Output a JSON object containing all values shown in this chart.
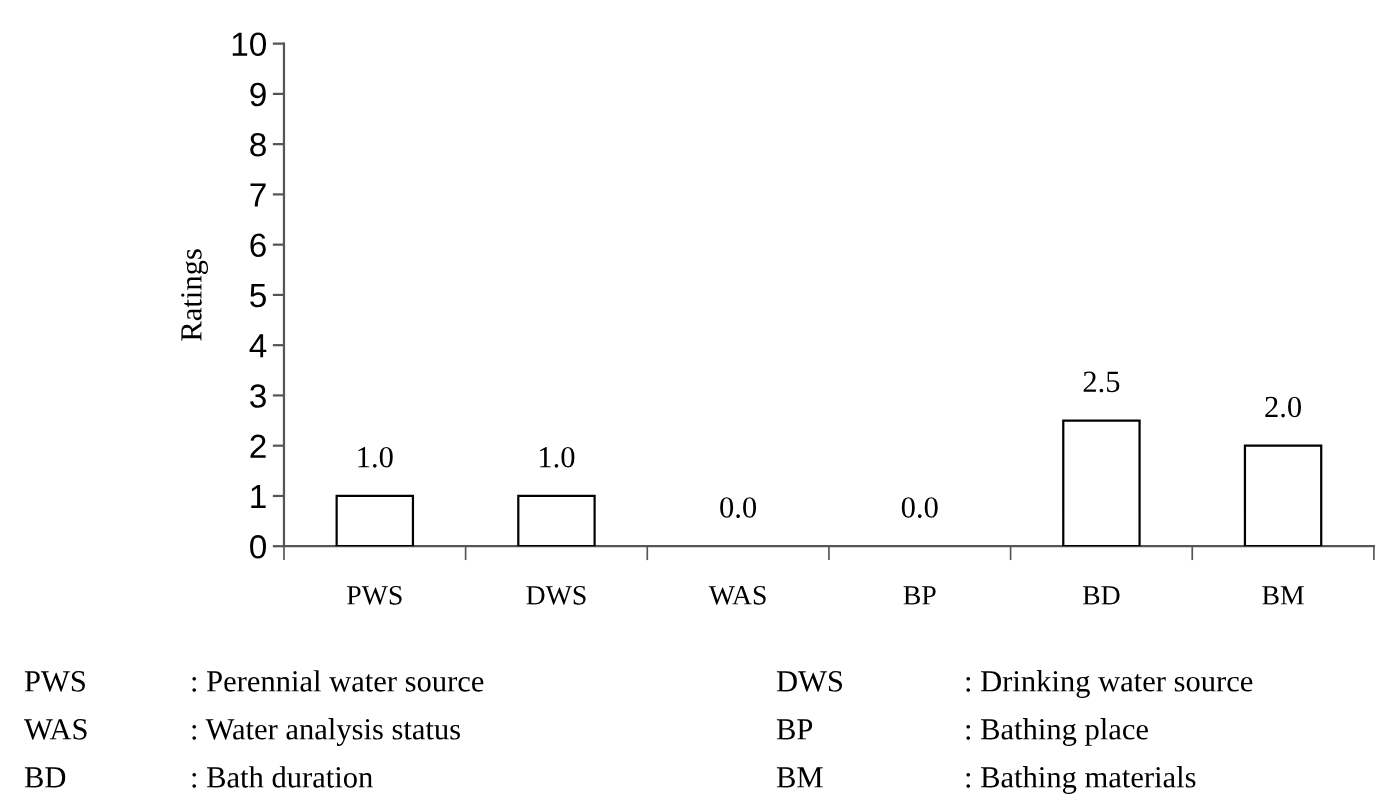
{
  "chart_data": {
    "type": "bar",
    "ylabel": "Ratings",
    "categories": [
      "PWS",
      "DWS",
      "WAS",
      "BP",
      "BD",
      "BM"
    ],
    "values": [
      1.0,
      1.0,
      0.0,
      0.0,
      2.5,
      2.0
    ],
    "value_labels": [
      "1.0",
      "1.0",
      "0.0",
      "0.0",
      "2.5",
      "2.0"
    ],
    "color": "#ffffff",
    "ylim": [
      0,
      10
    ],
    "yticks": [
      0,
      1,
      2,
      3,
      4,
      5,
      6,
      7,
      8,
      9,
      10
    ],
    "grid": false,
    "legend": false,
    "annotations": [
      "PWS",
      ": Perennial water source",
      "DWS",
      ": Drinking water source",
      "WAS",
      ": Water analysis status",
      "BP",
      ": Bathing place",
      "BD",
      ": Bath duration",
      "BM",
      ": Bathing materials"
    ]
  }
}
